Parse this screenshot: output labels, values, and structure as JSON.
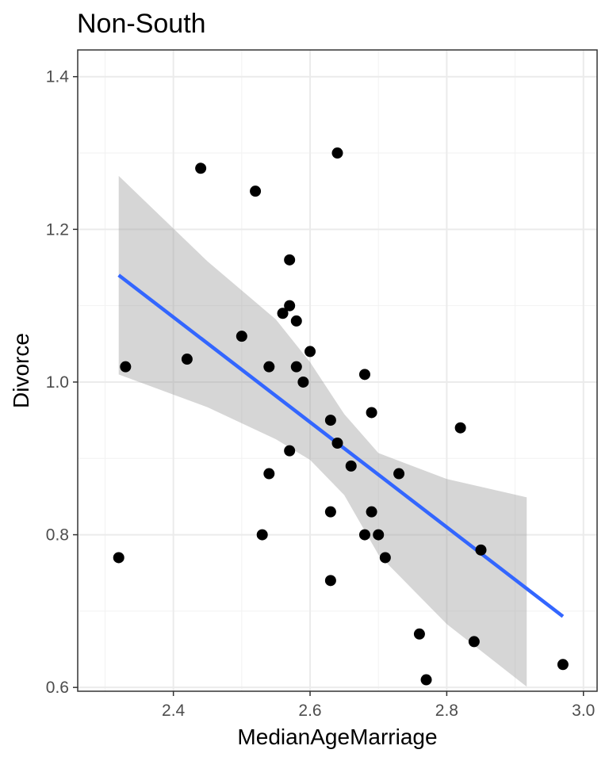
{
  "chart_data": {
    "type": "scatter",
    "title": "Non-South",
    "xlabel": "MedianAgeMarriage",
    "ylabel": "Divorce",
    "xlim": [
      2.26,
      3.02
    ],
    "ylim": [
      0.595,
      1.435
    ],
    "x_ticks": [
      2.4,
      2.6,
      2.8,
      3.0
    ],
    "x_tick_labels": [
      "2.4",
      "2.6",
      "2.8",
      "3.0"
    ],
    "y_ticks": [
      0.6,
      0.8,
      1.0,
      1.2,
      1.4
    ],
    "y_tick_labels": [
      "0.6",
      "0.8",
      "1.0",
      "1.2",
      "1.4"
    ],
    "grid": true,
    "theme": "bw",
    "point_color": "#000000",
    "line_color": "#3366FF",
    "band_color": "#999999",
    "points": [
      {
        "x": 2.32,
        "y": 0.77
      },
      {
        "x": 2.33,
        "y": 1.02
      },
      {
        "x": 2.42,
        "y": 1.03
      },
      {
        "x": 2.44,
        "y": 1.28
      },
      {
        "x": 2.5,
        "y": 1.06
      },
      {
        "x": 2.52,
        "y": 1.25
      },
      {
        "x": 2.53,
        "y": 0.8
      },
      {
        "x": 2.54,
        "y": 1.02
      },
      {
        "x": 2.54,
        "y": 0.88
      },
      {
        "x": 2.56,
        "y": 1.09
      },
      {
        "x": 2.57,
        "y": 1.16
      },
      {
        "x": 2.57,
        "y": 1.1
      },
      {
        "x": 2.57,
        "y": 0.91
      },
      {
        "x": 2.58,
        "y": 1.08
      },
      {
        "x": 2.58,
        "y": 1.02
      },
      {
        "x": 2.59,
        "y": 1.0
      },
      {
        "x": 2.6,
        "y": 1.04
      },
      {
        "x": 2.63,
        "y": 0.95
      },
      {
        "x": 2.63,
        "y": 0.83
      },
      {
        "x": 2.63,
        "y": 0.74
      },
      {
        "x": 2.64,
        "y": 1.3
      },
      {
        "x": 2.64,
        "y": 0.92
      },
      {
        "x": 2.66,
        "y": 0.89
      },
      {
        "x": 2.68,
        "y": 1.01
      },
      {
        "x": 2.68,
        "y": 0.8
      },
      {
        "x": 2.69,
        "y": 0.96
      },
      {
        "x": 2.69,
        "y": 0.83
      },
      {
        "x": 2.7,
        "y": 0.8
      },
      {
        "x": 2.71,
        "y": 0.77
      },
      {
        "x": 2.73,
        "y": 0.88
      },
      {
        "x": 2.76,
        "y": 0.67
      },
      {
        "x": 2.77,
        "y": 0.61
      },
      {
        "x": 2.82,
        "y": 0.94
      },
      {
        "x": 2.84,
        "y": 0.66
      },
      {
        "x": 2.85,
        "y": 0.78
      },
      {
        "x": 2.97,
        "y": 0.63
      }
    ],
    "fit_line": [
      {
        "x": 2.32,
        "y": 1.14
      },
      {
        "x": 2.97,
        "y": 0.693
      }
    ],
    "confidence_band": {
      "x_range": [
        2.32,
        2.917
      ],
      "upper": [
        {
          "x": 2.32,
          "y": 1.27
        },
        {
          "x": 2.45,
          "y": 1.158
        },
        {
          "x": 2.55,
          "y": 1.082
        },
        {
          "x": 2.6,
          "y": 1.026
        },
        {
          "x": 2.65,
          "y": 0.958
        },
        {
          "x": 2.7,
          "y": 0.907
        },
        {
          "x": 2.8,
          "y": 0.873
        },
        {
          "x": 2.917,
          "y": 0.849
        }
      ],
      "lower": [
        {
          "x": 2.32,
          "y": 1.01
        },
        {
          "x": 2.45,
          "y": 0.967
        },
        {
          "x": 2.55,
          "y": 0.925
        },
        {
          "x": 2.6,
          "y": 0.898
        },
        {
          "x": 2.65,
          "y": 0.852
        },
        {
          "x": 2.7,
          "y": 0.774
        },
        {
          "x": 2.8,
          "y": 0.683
        },
        {
          "x": 2.917,
          "y": 0.601
        }
      ]
    }
  }
}
